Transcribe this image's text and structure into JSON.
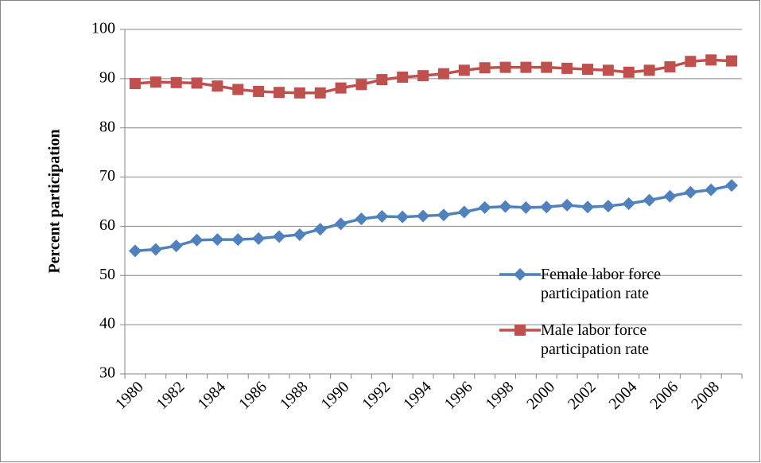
{
  "chart_data": {
    "type": "line",
    "y_label": "Percent participation",
    "categories": [
      "1980",
      null,
      "1982",
      null,
      "1984",
      null,
      "1986",
      null,
      "1988",
      null,
      "1990",
      null,
      "1992",
      null,
      "1994",
      null,
      "1996",
      null,
      "1998",
      null,
      "2000",
      null,
      "2002",
      null,
      "2004",
      null,
      "2006",
      null,
      "2008",
      null
    ],
    "series": [
      {
        "name": "Female labor force participation rate",
        "color": "#4f81bd",
        "marker": "diamond",
        "values": [
          55.0,
          55.3,
          56.0,
          57.2,
          57.3,
          57.3,
          57.5,
          57.9,
          58.3,
          59.4,
          60.5,
          61.5,
          62.0,
          61.9,
          62.1,
          62.3,
          62.9,
          63.8,
          64.0,
          63.8,
          63.9,
          64.3,
          63.9,
          64.1,
          64.6,
          65.3,
          66.1,
          66.9,
          67.4,
          68.3
        ]
      },
      {
        "name": "Male labor force participation rate",
        "color": "#c0504d",
        "marker": "square",
        "values": [
          89.0,
          89.3,
          89.2,
          89.1,
          88.5,
          87.8,
          87.4,
          87.2,
          87.1,
          87.1,
          88.1,
          88.8,
          89.8,
          90.3,
          90.6,
          91.0,
          91.7,
          92.2,
          92.3,
          92.3,
          92.3,
          92.1,
          91.9,
          91.7,
          91.3,
          91.7,
          92.4,
          93.5,
          93.8,
          93.6
        ]
      }
    ],
    "ylim": [
      30,
      100
    ],
    "yticks": [
      30,
      40,
      50,
      60,
      70,
      80,
      90,
      100
    ],
    "grid": true,
    "legend": "lower right"
  }
}
